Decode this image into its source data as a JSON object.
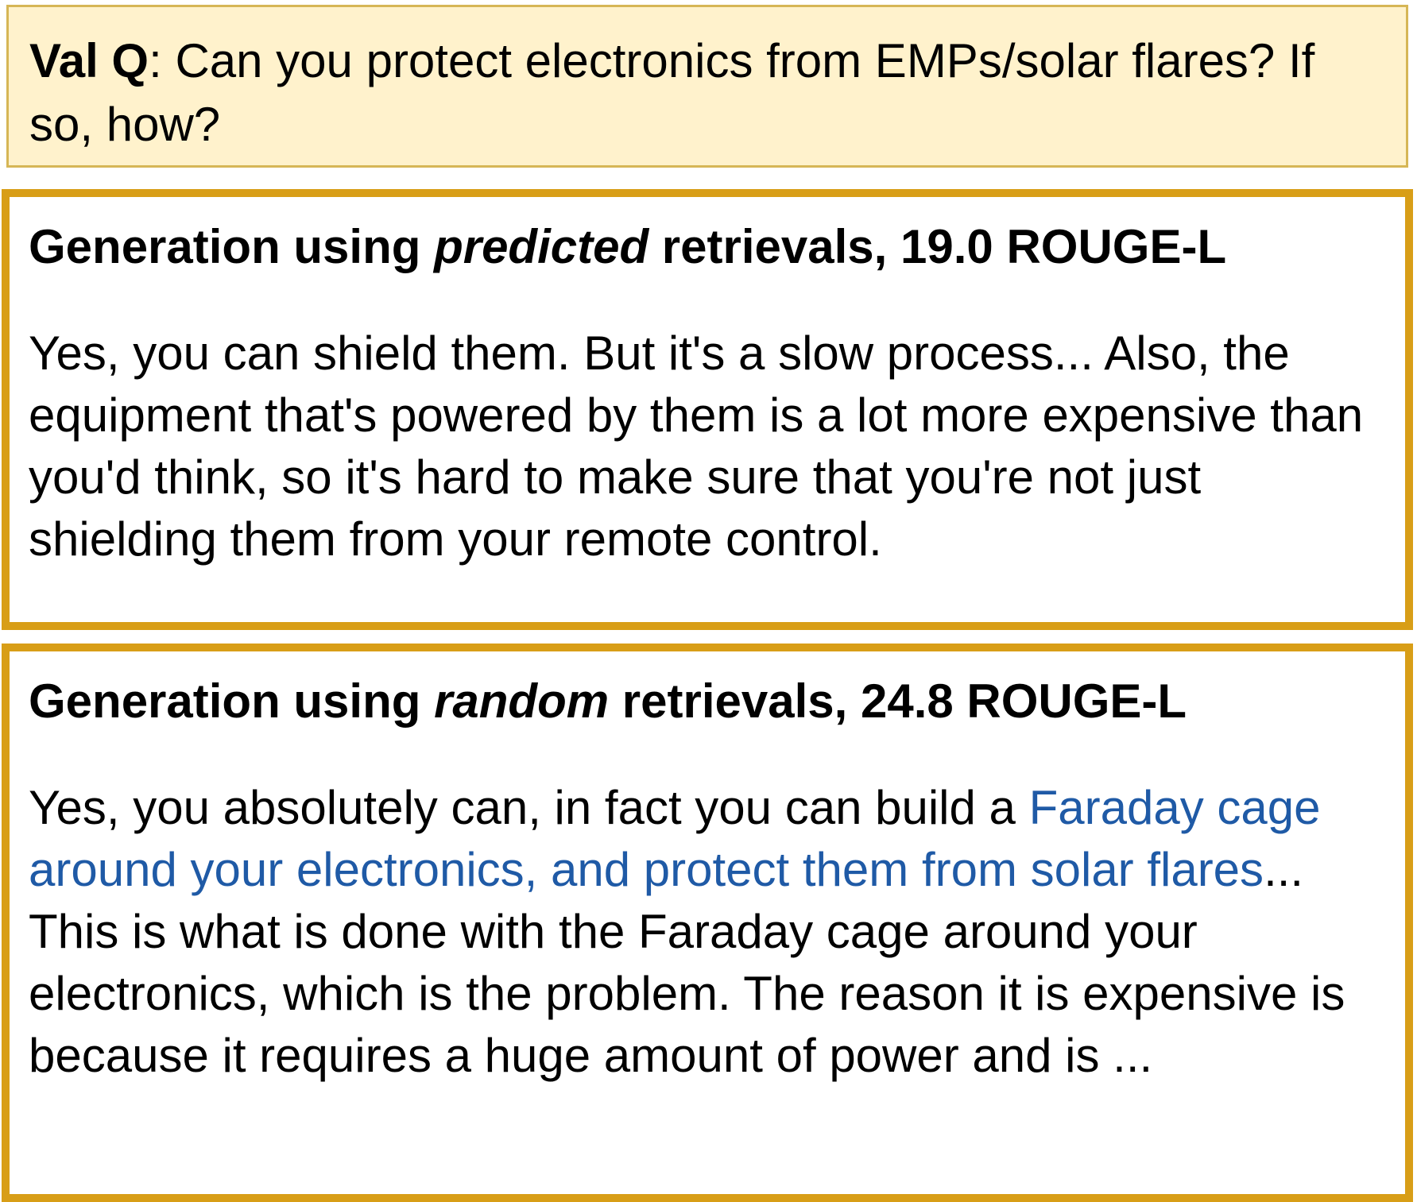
{
  "question": {
    "label": "Val Q",
    "separator": ": ",
    "text": "Can you protect electronics from EMPs/solar flares? If so, how?"
  },
  "predicted": {
    "title_prefix": "Generation using ",
    "title_emph": "predicted",
    "title_suffix": " retrievals, 19.0 ROUGE-L",
    "body": "Yes, you can shield them. But it's a slow process... Also, the equipment that's powered by them is a lot more expensive than you'd think, so it's hard to make sure that you're not just shielding them from your remote control."
  },
  "random": {
    "title_prefix": "Generation using ",
    "title_emph": "random",
    "title_suffix": " retrievals, 24.8 ROUGE-L",
    "body_before": "Yes, you absolutely can, in fact you can build a ",
    "body_highlight": "Faraday cage around your electronics, and protect them from solar flares",
    "body_after": "... This is what is done with the Faraday cage around your electronics, which is the problem. The reason it is expensive is because it requires a huge amount of power and is ..."
  },
  "colors": {
    "question_bg": "#fff2cc",
    "question_border": "#d6b656",
    "box_border": "#d89e17",
    "highlight_text": "#1f5aa6"
  }
}
